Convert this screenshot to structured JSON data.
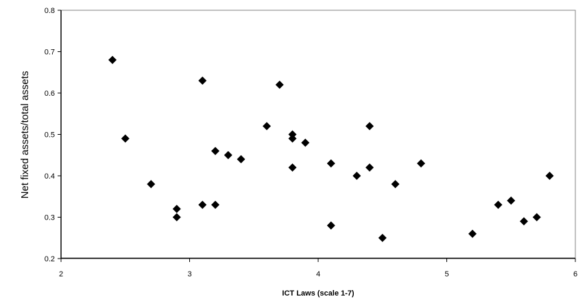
{
  "chart_data": {
    "type": "scatter",
    "xlabel": "ICT Laws (scale 1-7)",
    "ylabel": "Net fixed assets/total assets",
    "xlim": [
      2,
      6
    ],
    "ylim": [
      0.2,
      0.8
    ],
    "xticks": [
      2,
      3,
      4,
      5,
      6
    ],
    "yticks": [
      0.2,
      0.3,
      0.4,
      0.5,
      0.6,
      0.7,
      0.8
    ],
    "grid": false,
    "marker": "diamond",
    "marker_color": "#000000",
    "points": [
      {
        "x": 2.4,
        "y": 0.68
      },
      {
        "x": 2.5,
        "y": 0.49
      },
      {
        "x": 2.7,
        "y": 0.38
      },
      {
        "x": 2.9,
        "y": 0.32
      },
      {
        "x": 2.9,
        "y": 0.3
      },
      {
        "x": 3.1,
        "y": 0.63
      },
      {
        "x": 3.1,
        "y": 0.33
      },
      {
        "x": 3.2,
        "y": 0.46
      },
      {
        "x": 3.2,
        "y": 0.33
      },
      {
        "x": 3.3,
        "y": 0.45
      },
      {
        "x": 3.4,
        "y": 0.44
      },
      {
        "x": 3.6,
        "y": 0.52
      },
      {
        "x": 3.7,
        "y": 0.62
      },
      {
        "x": 3.8,
        "y": 0.5
      },
      {
        "x": 3.8,
        "y": 0.49
      },
      {
        "x": 3.8,
        "y": 0.42
      },
      {
        "x": 3.9,
        "y": 0.48
      },
      {
        "x": 4.1,
        "y": 0.43
      },
      {
        "x": 4.1,
        "y": 0.28
      },
      {
        "x": 4.3,
        "y": 0.4
      },
      {
        "x": 4.4,
        "y": 0.52
      },
      {
        "x": 4.4,
        "y": 0.42
      },
      {
        "x": 4.5,
        "y": 0.25
      },
      {
        "x": 4.6,
        "y": 0.38
      },
      {
        "x": 4.8,
        "y": 0.43
      },
      {
        "x": 5.2,
        "y": 0.26
      },
      {
        "x": 5.4,
        "y": 0.33
      },
      {
        "x": 5.5,
        "y": 0.34
      },
      {
        "x": 5.6,
        "y": 0.29
      },
      {
        "x": 5.7,
        "y": 0.3
      },
      {
        "x": 5.8,
        "y": 0.4
      }
    ]
  }
}
